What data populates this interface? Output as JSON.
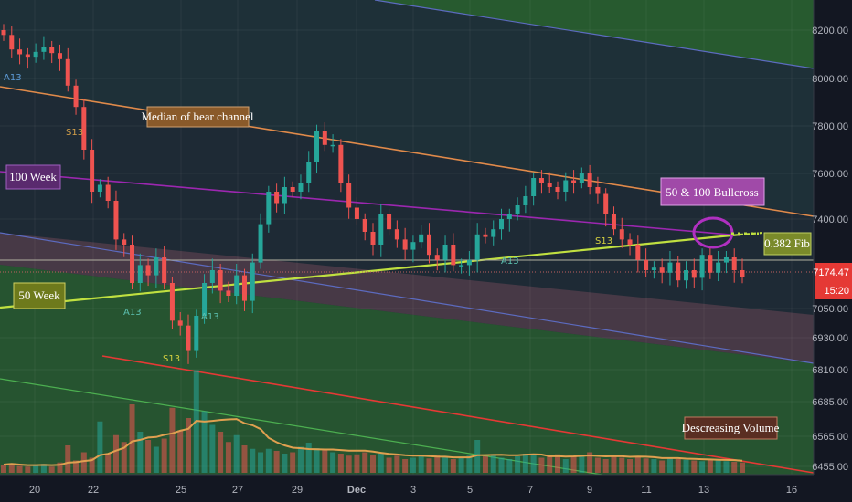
{
  "colors": {
    "background": "#1e2a35",
    "green_zone": "#2b6b2e",
    "pink_zone": "#4b3b48",
    "teal_zone": "#1f3b40",
    "axis_bg": "#131722",
    "candle_up": "#26a69a",
    "candle_down": "#ef5350",
    "median_line": "#e08a4a",
    "week100_line": "#9c27b0",
    "week50_line": "#c0e040",
    "channel_line": "#5c6bc0",
    "red_line": "#e53935",
    "green_line": "#4caf50",
    "volume_ma": "#e0a050",
    "label_median": "#8a5a2a",
    "label_100week": "#5a2a6e",
    "label_bullcross": "#a04aa8",
    "label_50week": "#6e7a1c",
    "label_fib": "#7a8a2a",
    "label_volume": "#5a2e22",
    "price_tag": "#e53935"
  },
  "annotations": {
    "median": "Median of bear channel",
    "week100": "100 Week",
    "bullcross": "50 & 100 Bullcross",
    "week50": "50 Week",
    "fib": "0.382 Fib",
    "volume": "Descreasing  Volume"
  },
  "price_tag": {
    "price": "7174.47",
    "countdown": "15:20"
  },
  "chart_data": {
    "type": "candlestick",
    "y_ticks": [
      8200,
      8000,
      7800,
      7600,
      7400,
      7050,
      6930,
      6810,
      6685,
      6565,
      6455
    ],
    "y_tick_labels": [
      "8200.00",
      "8000.00",
      "7800.00",
      "7600.00",
      "7400.00",
      "7050.00",
      "6930.00",
      "6810.00",
      "6685.00",
      "6565.00",
      "6455.00"
    ],
    "x_labels": [
      "20",
      "22",
      "25",
      "27",
      "29",
      "Dec",
      "3",
      "5",
      "7",
      "9",
      "11",
      "13",
      "16"
    ],
    "last_price": 7174.47,
    "closes": [
      8180,
      8120,
      8100,
      8090,
      8110,
      8130,
      8105,
      8080,
      7970,
      7880,
      7700,
      7520,
      7550,
      7480,
      7320,
      7300,
      7150,
      7220,
      7180,
      7250,
      7150,
      7000,
      6980,
      6880,
      7020,
      7150,
      7200,
      7120,
      7100,
      7180,
      7080,
      7230,
      7380,
      7520,
      7470,
      7540,
      7520,
      7560,
      7650,
      7780,
      7720,
      7720,
      7560,
      7450,
      7400,
      7350,
      7300,
      7420,
      7360,
      7320,
      7280,
      7310,
      7340,
      7260,
      7240,
      7300,
      7220,
      7220,
      7240,
      7340,
      7330,
      7360,
      7400,
      7420,
      7460,
      7500,
      7580,
      7560,
      7540,
      7520,
      7570,
      7560,
      7600,
      7540,
      7510,
      7420,
      7360,
      7320,
      7300,
      7240,
      7200,
      7210,
      7190,
      7230,
      7160,
      7200,
      7170,
      7260,
      7190,
      7230,
      7250,
      7200,
      7174
    ],
    "volume": [
      12,
      14,
      10,
      9,
      11,
      13,
      9,
      15,
      40,
      18,
      30,
      22,
      75,
      28,
      55,
      45,
      100,
      60,
      48,
      38,
      50,
      95,
      62,
      80,
      150,
      90,
      70,
      60,
      45,
      55,
      40,
      35,
      30,
      35,
      32,
      28,
      30,
      38,
      44,
      36,
      33,
      30,
      28,
      25,
      27,
      30,
      26,
      28,
      22,
      25,
      20,
      22,
      24,
      21,
      26,
      23,
      20,
      22,
      25,
      48,
      24,
      26,
      22,
      20,
      24,
      28,
      26,
      22,
      25,
      27,
      20,
      24,
      26,
      30,
      22,
      20,
      26,
      22,
      20,
      24,
      21,
      20,
      18,
      22,
      20,
      19,
      18,
      17,
      20,
      18,
      17,
      16,
      15
    ]
  }
}
